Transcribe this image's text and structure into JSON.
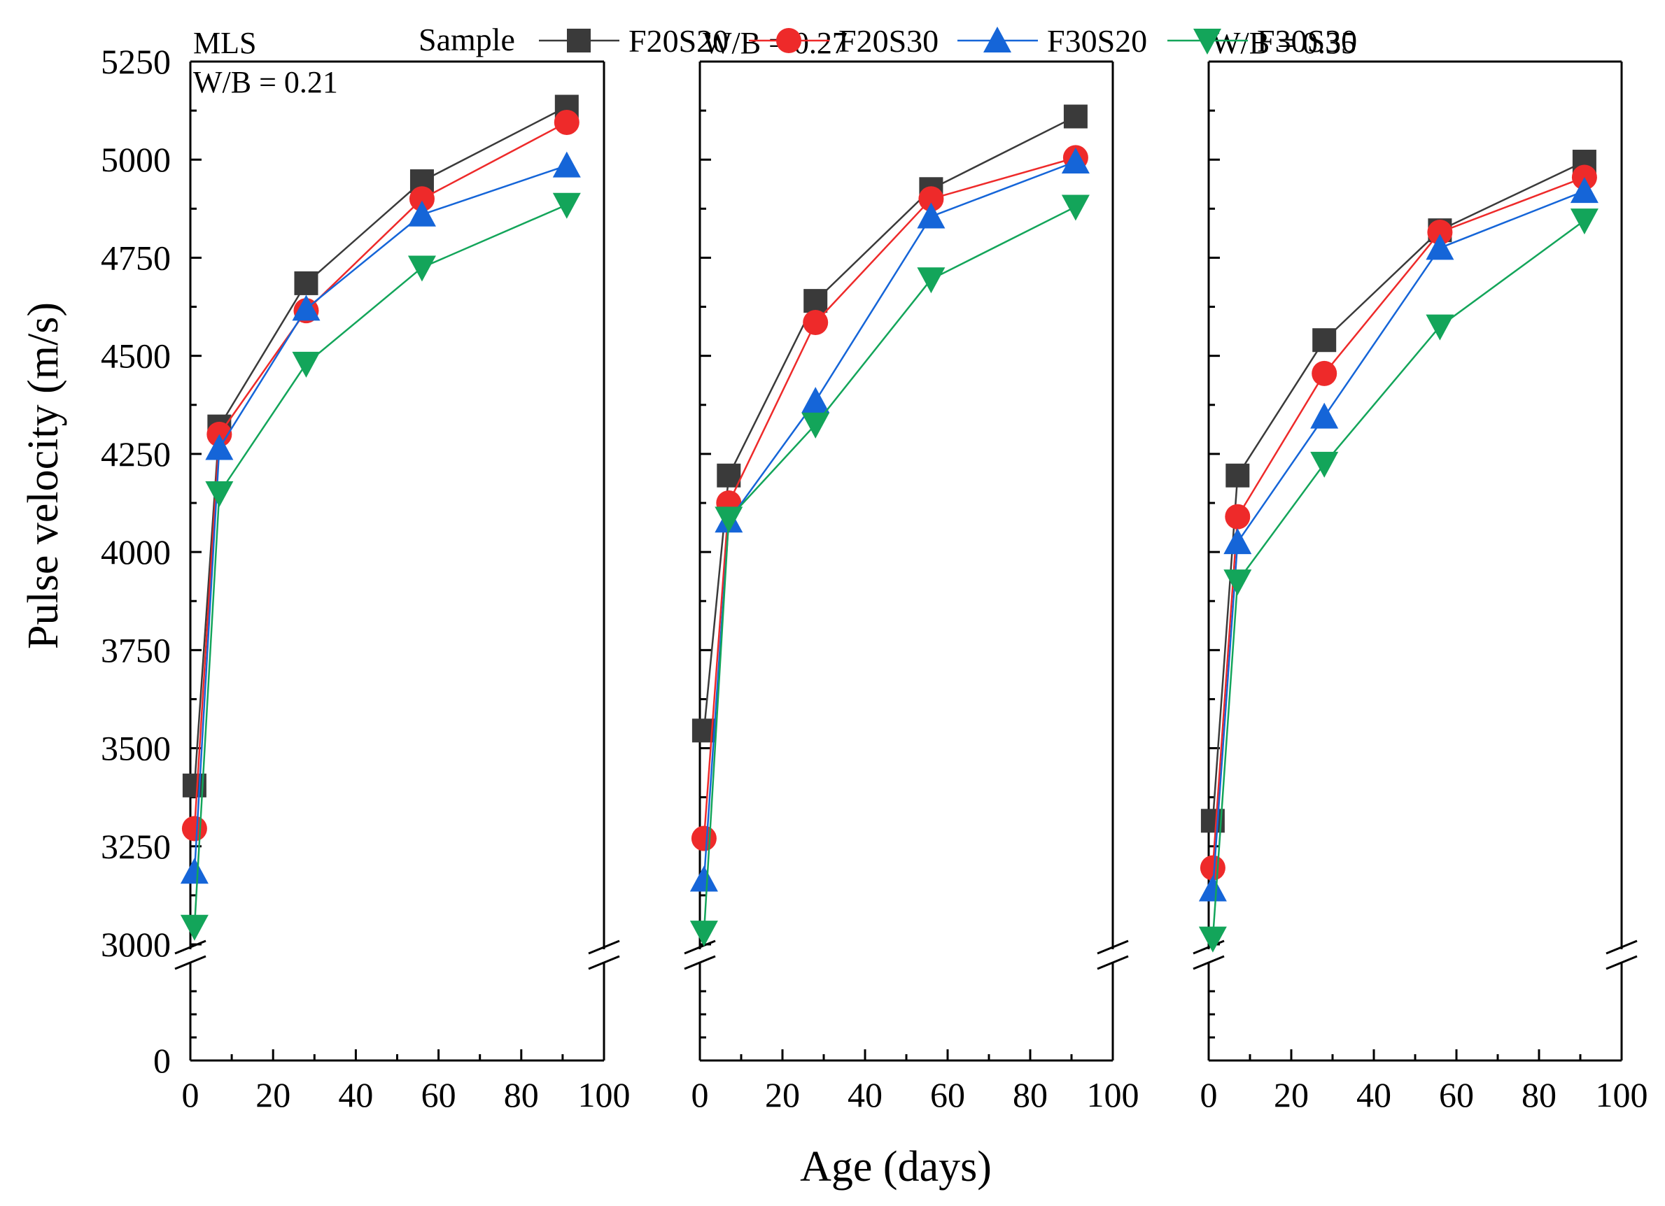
{
  "chart_data": {
    "type": "line",
    "xlabel": "Age (days)",
    "ylabel": "Pulse velocity (m/s)",
    "xlim": [
      0,
      100
    ],
    "xticks": [
      0,
      20,
      40,
      60,
      80,
      100
    ],
    "xtick_labels": [
      "0",
      "20",
      "40",
      "60",
      "80",
      "100"
    ],
    "ylim_upper": [
      3000,
      5250
    ],
    "ylim_lower": [
      0,
      3000
    ],
    "axis_break": true,
    "yticks": [
      0,
      3000,
      3250,
      3500,
      3750,
      4000,
      4250,
      4500,
      4750,
      5000,
      5250
    ],
    "ytick_labels": [
      "0",
      "3000",
      "3250",
      "3500",
      "3750",
      "4000",
      "4250",
      "4500",
      "4750",
      "5000",
      "5250"
    ],
    "legend": {
      "title": "Sample",
      "placement": "top",
      "entries": [
        "F20S20",
        "F20S30",
        "F30S20",
        "F30S30"
      ]
    },
    "series_styles": [
      {
        "name": "F20S20",
        "color": "#3a3a3a",
        "marker": "square"
      },
      {
        "name": "F20S30",
        "color": "#ee2a2a",
        "marker": "circle"
      },
      {
        "name": "F30S20",
        "color": "#1565d8",
        "marker": "triangle-up"
      },
      {
        "name": "F30S30",
        "color": "#13a55a",
        "marker": "triangle-down"
      }
    ],
    "panels": [
      {
        "labels": [
          "MLS",
          "W/B = 0.21"
        ],
        "x": [
          1,
          7,
          28,
          56,
          91
        ],
        "series": [
          {
            "name": "F20S20",
            "values": [
              3405,
              4320,
              4685,
              4945,
              5135
            ]
          },
          {
            "name": "F20S30",
            "values": [
              3295,
              4300,
              4615,
              4900,
              5095
            ]
          },
          {
            "name": "F30S20",
            "values": [
              3185,
              4265,
              4620,
              4860,
              4985
            ]
          },
          {
            "name": "F30S30",
            "values": [
              3045,
              4150,
              4480,
              4725,
              4885
            ]
          }
        ]
      },
      {
        "labels": [
          "W/B = 0.27"
        ],
        "x": [
          1,
          7,
          28,
          56,
          91
        ],
        "series": [
          {
            "name": "F20S20",
            "values": [
              3545,
              4195,
              4640,
              4925,
              5110
            ]
          },
          {
            "name": "F20S30",
            "values": [
              3270,
              4125,
              4585,
              4900,
              5005
            ]
          },
          {
            "name": "F30S20",
            "values": [
              3165,
              4080,
              4385,
              4855,
              4995
            ]
          },
          {
            "name": "F30S30",
            "values": [
              3030,
              4085,
              4325,
              4695,
              4880
            ]
          }
        ]
      },
      {
        "labels": [
          "W/B = 0.35"
        ],
        "x": [
          1,
          7,
          28,
          56,
          91
        ],
        "series": [
          {
            "name": "F20S20",
            "values": [
              3315,
              4195,
              4540,
              4820,
              4995
            ]
          },
          {
            "name": "F20S30",
            "values": [
              3195,
              4090,
              4455,
              4815,
              4955
            ]
          },
          {
            "name": "F30S20",
            "values": [
              3140,
              4025,
              4345,
              4775,
              4920
            ]
          },
          {
            "name": "F30S30",
            "values": [
              3015,
              3925,
              4225,
              4575,
              4845
            ]
          }
        ]
      }
    ]
  }
}
